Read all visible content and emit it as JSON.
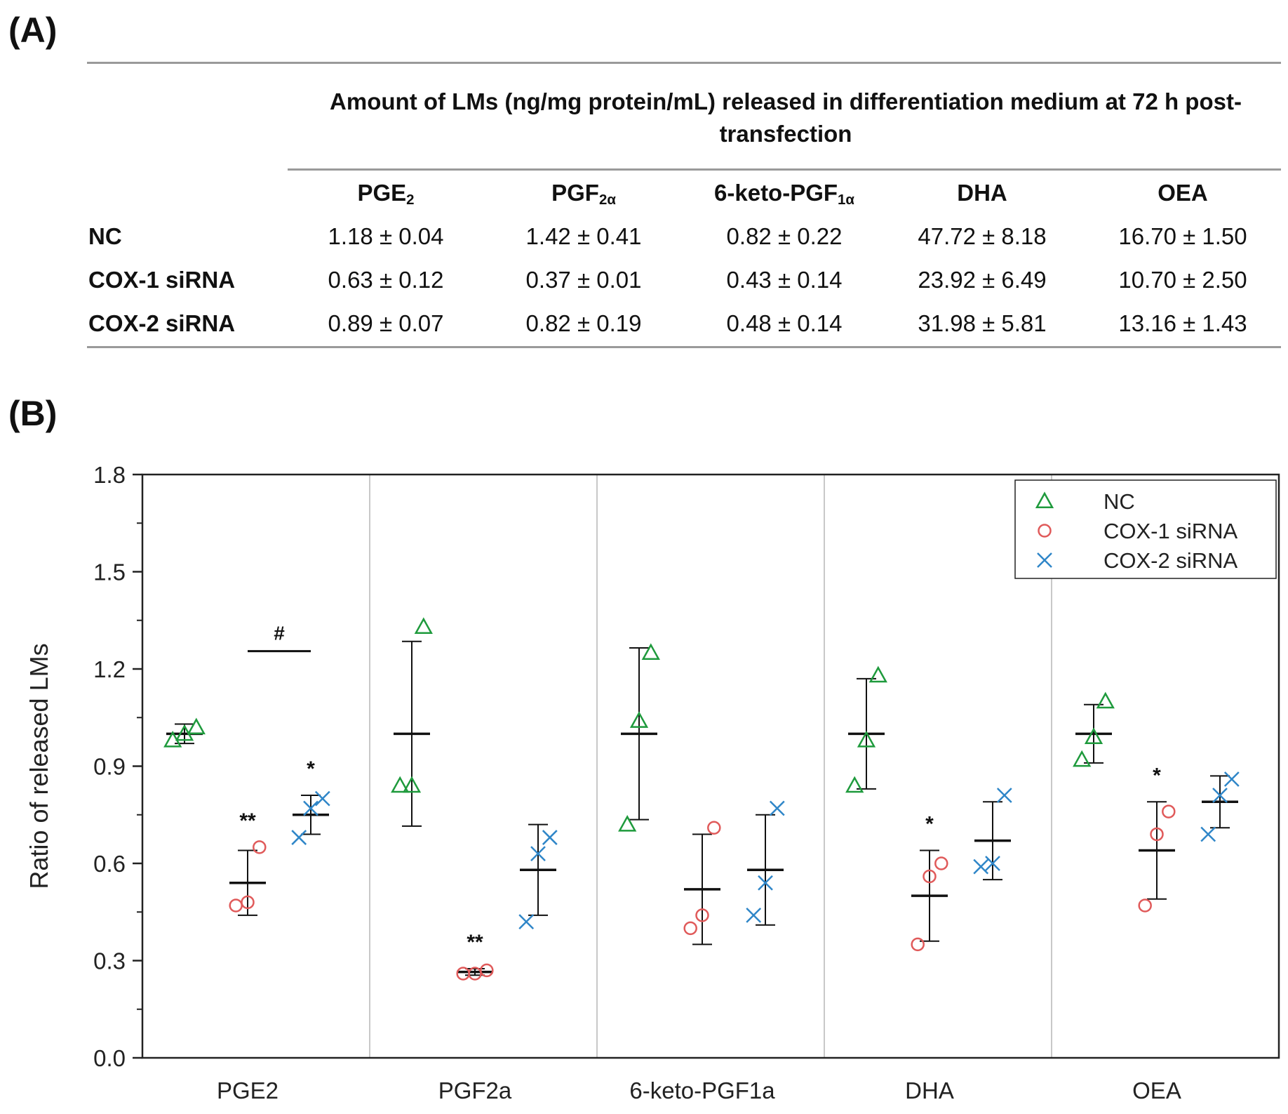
{
  "panel_a": {
    "label": "(A)",
    "caption": "Amount of LMs (ng/mg protein/mL) released in differentiation medium at 72 h post-transfection",
    "columns": [
      {
        "main": "PGE",
        "sub": "2"
      },
      {
        "main": "PGF",
        "sub": "2α"
      },
      {
        "main": "6-keto-PGF",
        "sub": "1α"
      },
      {
        "main": "DHA",
        "sub": ""
      },
      {
        "main": "OEA",
        "sub": ""
      }
    ],
    "rows": [
      {
        "name": "NC",
        "values": [
          "1.18 ± 0.04",
          "1.42 ± 0.41",
          "0.82 ± 0.22",
          "47.72 ± 8.18",
          "16.70 ± 1.50"
        ]
      },
      {
        "name": "COX-1 siRNA",
        "values": [
          "0.63 ± 0.12",
          "0.37 ± 0.01",
          "0.43 ± 0.14",
          "23.92 ± 6.49",
          "10.70 ± 2.50"
        ]
      },
      {
        "name": "COX-2 siRNA",
        "values": [
          "0.89 ± 0.07",
          "0.82 ± 0.19",
          "0.48 ± 0.14",
          "31.98 ± 5.81",
          "13.16 ± 1.43"
        ]
      }
    ]
  },
  "panel_b": {
    "label": "(B)"
  },
  "chart_data": {
    "type": "scatter",
    "ylabel": "Ratio of released LMs",
    "xlabel": "",
    "ylim": [
      0,
      1.8
    ],
    "yticks": [
      "0.0",
      "0.3",
      "0.6",
      "0.9",
      "1.2",
      "1.5",
      "1.8"
    ],
    "categories": [
      "PGE2",
      "PGF2a",
      "6-keto-PGF1a",
      "DHA",
      "OEA"
    ],
    "legend_position": "top-right",
    "series": [
      {
        "name": "NC",
        "marker": "triangle",
        "color": "#1e9a3c",
        "points": [
          [
            0.98,
            1.0,
            1.02
          ],
          [
            0.84,
            0.84,
            1.33
          ],
          [
            0.72,
            1.04,
            1.25
          ],
          [
            0.84,
            0.98,
            1.18
          ],
          [
            0.92,
            0.99,
            1.1
          ]
        ],
        "mean": [
          1.0,
          1.0,
          1.0,
          1.0,
          1.0
        ],
        "err": [
          0.03,
          0.285,
          0.265,
          0.17,
          0.09
        ],
        "marks": [
          "",
          "",
          "",
          "",
          ""
        ]
      },
      {
        "name": "COX-1 siRNA",
        "marker": "circle",
        "color": "#e05a5a",
        "points": [
          [
            0.47,
            0.48,
            0.65
          ],
          [
            0.26,
            0.26,
            0.27
          ],
          [
            0.4,
            0.44,
            0.71
          ],
          [
            0.35,
            0.56,
            0.6
          ],
          [
            0.47,
            0.69,
            0.76
          ]
        ],
        "mean": [
          0.54,
          0.265,
          0.52,
          0.5,
          0.64
        ],
        "err": [
          0.1,
          0.01,
          0.17,
          0.14,
          0.15
        ],
        "marks": [
          "**",
          "**",
          "",
          "*",
          "*"
        ]
      },
      {
        "name": "COX-2 siRNA",
        "marker": "cross",
        "color": "#2f86c8",
        "points": [
          [
            0.68,
            0.77,
            0.8
          ],
          [
            0.42,
            0.63,
            0.68
          ],
          [
            0.44,
            0.54,
            0.77
          ],
          [
            0.59,
            0.6,
            0.81
          ],
          [
            0.69,
            0.81,
            0.86
          ]
        ],
        "mean": [
          0.75,
          0.58,
          0.58,
          0.67,
          0.79
        ],
        "err": [
          0.06,
          0.14,
          0.17,
          0.12,
          0.08
        ],
        "marks": [
          "*",
          "",
          "",
          "",
          ""
        ]
      }
    ],
    "bracket": {
      "category": "PGE2",
      "from_series": 1,
      "to_series": 2,
      "y": 1.255,
      "label": "#"
    }
  }
}
